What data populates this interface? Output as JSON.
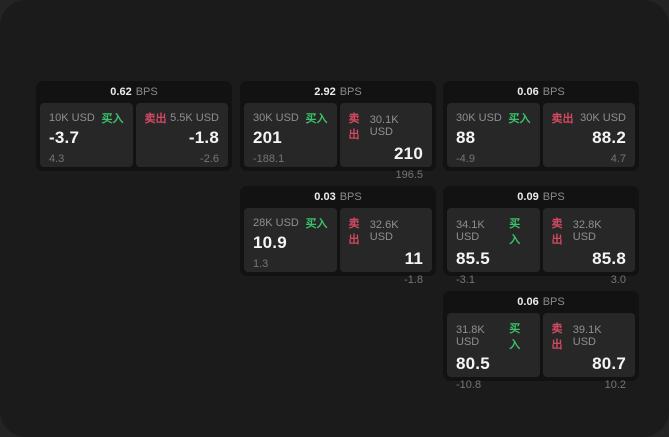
{
  "labels": {
    "buy": "买入",
    "sell": "卖出",
    "bps_unit": "BPS"
  },
  "colors": {
    "buy": "#3bc169",
    "sell": "#d24961",
    "page_bg": "#1b1b1b",
    "outer_bg": "#242424",
    "card_bg": "#121212",
    "panel_bg": "#272727"
  },
  "cards": [
    {
      "bps": "0.62",
      "buy": {
        "amount": "10K USD",
        "price": "-3.7",
        "sub": "4.3"
      },
      "sell": {
        "amount": "5.5K USD",
        "price": "-1.8",
        "sub": "-2.6"
      }
    },
    {
      "bps": "2.92",
      "buy": {
        "amount": "30K USD",
        "price": "201",
        "sub": "-188.1"
      },
      "sell": {
        "amount": "30.1K USD",
        "price": "210",
        "sub": "196.5"
      }
    },
    {
      "bps": "0.06",
      "buy": {
        "amount": "30K USD",
        "price": "88",
        "sub": "-4.9"
      },
      "sell": {
        "amount": "30K USD",
        "price": "88.2",
        "sub": "4.7"
      }
    },
    {
      "bps": "0.03",
      "buy": {
        "amount": "28K USD",
        "price": "10.9",
        "sub": "1.3"
      },
      "sell": {
        "amount": "32.6K USD",
        "price": "11",
        "sub": "-1.8"
      }
    },
    {
      "bps": "0.09",
      "buy": {
        "amount": "34.1K USD",
        "price": "85.5",
        "sub": "-3.1"
      },
      "sell": {
        "amount": "32.8K USD",
        "price": "85.8",
        "sub": "3.0"
      }
    },
    {
      "bps": "0.06",
      "buy": {
        "amount": "31.8K USD",
        "price": "80.5",
        "sub": "-10.8"
      },
      "sell": {
        "amount": "39.1K USD",
        "price": "80.7",
        "sub": "10.2"
      }
    }
  ]
}
